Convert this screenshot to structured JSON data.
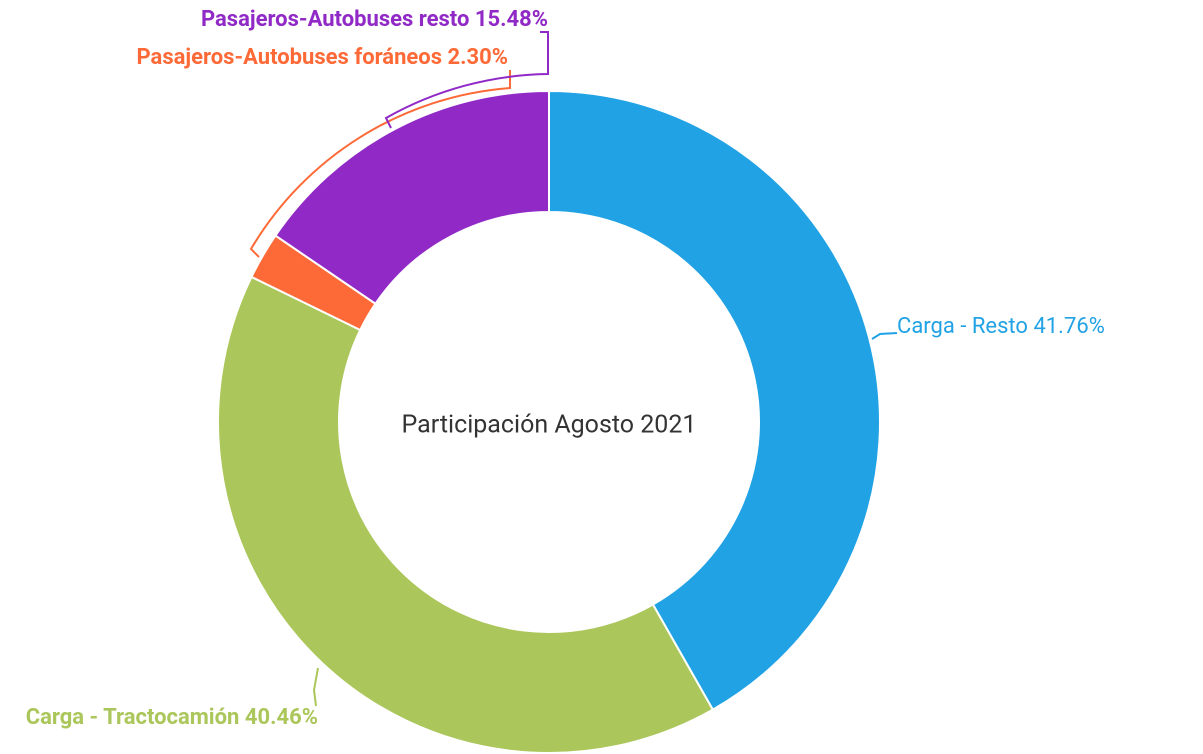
{
  "chart_data": {
    "type": "donut",
    "title": "Participación Agosto 2021",
    "categories": [
      "Carga - Resto",
      "Carga - Tractocamión",
      "Pasajeros-Autobuses foráneos",
      "Pasajeros-Autobuses resto"
    ],
    "values": [
      41.76,
      40.46,
      2.3,
      15.48
    ],
    "value_labels": [
      "41.76%",
      "40.46%",
      "2.30%",
      "15.48%"
    ],
    "colors": [
      "#21a2e5",
      "#abc65a",
      "#fd6a37",
      "#9029c6"
    ]
  }
}
